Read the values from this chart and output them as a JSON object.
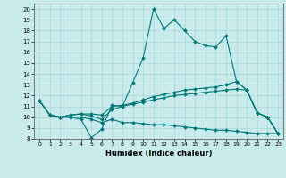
{
  "xlabel": "Humidex (Indice chaleur)",
  "xlim": [
    -0.5,
    23.5
  ],
  "ylim": [
    8,
    20.5
  ],
  "yticks": [
    8,
    9,
    10,
    11,
    12,
    13,
    14,
    15,
    16,
    17,
    18,
    19,
    20
  ],
  "xticks": [
    0,
    1,
    2,
    3,
    4,
    5,
    6,
    7,
    8,
    9,
    10,
    11,
    12,
    13,
    14,
    15,
    16,
    17,
    18,
    19,
    20,
    21,
    22,
    23
  ],
  "bg_color": "#c8eaea",
  "grid_color": "#a8d8d8",
  "line_color": "#007878",
  "line1_y": [
    11.5,
    10.2,
    10.0,
    10.0,
    9.8,
    8.1,
    8.9,
    11.1,
    11.0,
    13.2,
    15.5,
    20.0,
    18.2,
    19.0,
    18.0,
    17.0,
    16.6,
    16.5,
    17.5,
    13.3,
    12.5,
    10.4,
    10.0,
    8.5
  ],
  "line2_y": [
    11.5,
    10.2,
    10.0,
    10.2,
    10.3,
    10.3,
    10.2,
    11.0,
    11.1,
    11.3,
    11.6,
    11.9,
    12.1,
    12.3,
    12.5,
    12.6,
    12.7,
    12.8,
    13.0,
    13.3,
    12.5,
    10.4,
    10.0,
    8.5
  ],
  "line3_y": [
    11.5,
    10.2,
    10.0,
    10.2,
    10.3,
    10.1,
    9.8,
    10.7,
    11.0,
    11.2,
    11.4,
    11.6,
    11.8,
    12.0,
    12.1,
    12.2,
    12.3,
    12.4,
    12.5,
    12.6,
    12.5,
    10.4,
    10.0,
    8.5
  ],
  "line4_y": [
    11.5,
    10.2,
    10.0,
    10.0,
    10.0,
    9.8,
    9.5,
    9.8,
    9.5,
    9.5,
    9.4,
    9.3,
    9.3,
    9.2,
    9.1,
    9.0,
    8.9,
    8.8,
    8.8,
    8.7,
    8.6,
    8.5,
    8.5,
    8.5
  ]
}
